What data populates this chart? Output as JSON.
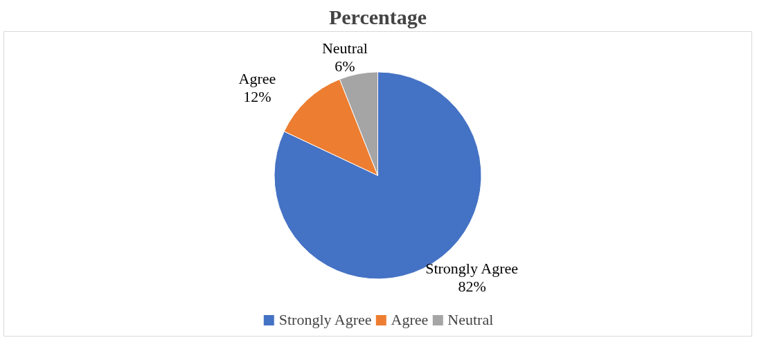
{
  "chart_data": {
    "type": "pie",
    "title": "Percentage",
    "categories": [
      "Strongly Agree",
      "Agree",
      "Neutral"
    ],
    "values": [
      82,
      12,
      6
    ],
    "value_labels": [
      "82%",
      "12%",
      "6%"
    ],
    "colors": [
      "#4472c4",
      "#ed7d31",
      "#a5a5a5"
    ],
    "legend": "bottom"
  }
}
